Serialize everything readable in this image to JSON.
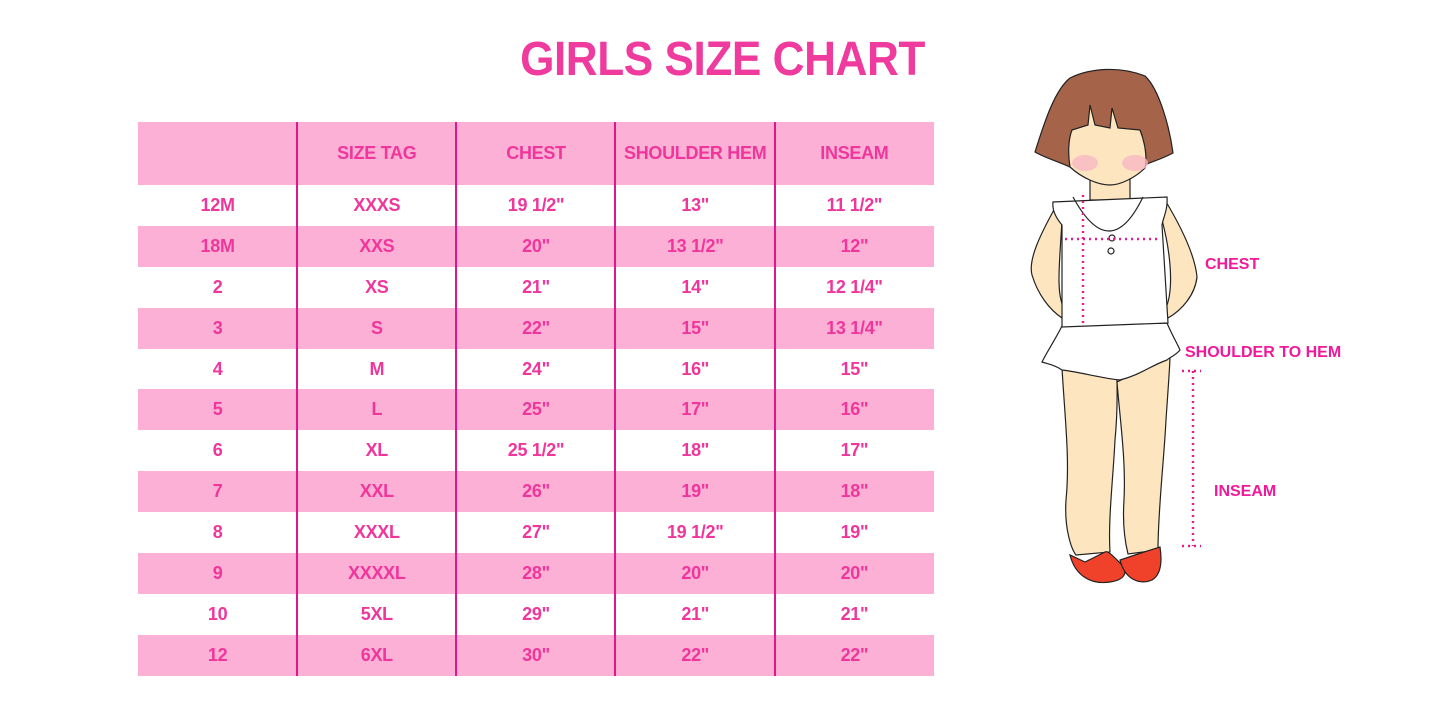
{
  "title": "GIRLS SIZE CHART",
  "table": {
    "headers": [
      "",
      "SIZE TAG",
      "CHEST",
      "SHOULDER HEM",
      "INSEAM"
    ],
    "rows": [
      [
        "12M",
        "XXXS",
        "19 1/2\"",
        "13\"",
        "11 1/2\""
      ],
      [
        "18M",
        "XXS",
        "20\"",
        "13 1/2\"",
        "12\""
      ],
      [
        "2",
        "XS",
        "21\"",
        "14\"",
        "12 1/4\""
      ],
      [
        "3",
        "S",
        "22\"",
        "15\"",
        "13 1/4\""
      ],
      [
        "4",
        "M",
        "24\"",
        "16\"",
        "15\""
      ],
      [
        "5",
        "L",
        "25\"",
        "17\"",
        "16\""
      ],
      [
        "6",
        "XL",
        "25 1/2\"",
        "18\"",
        "17\""
      ],
      [
        "7",
        "XXL",
        "26\"",
        "19\"",
        "18\""
      ],
      [
        "8",
        "XXXL",
        "27\"",
        "19 1/2\"",
        "19\""
      ],
      [
        "9",
        "XXXXL",
        "28\"",
        "20\"",
        "20\""
      ],
      [
        "10",
        "5XL",
        "29\"",
        "21\"",
        "21\""
      ],
      [
        "12",
        "6XL",
        "30\"",
        "22\"",
        "22\""
      ]
    ]
  },
  "figure": {
    "labels": {
      "chest": "CHEST",
      "shoulder_to_hem": "SHOULDER TO HEM",
      "inseam": "INSEAM"
    }
  },
  "colors": {
    "accent": "#ef3a9e",
    "row_pink": "#fdb0d6",
    "divider": "#e0168b"
  }
}
